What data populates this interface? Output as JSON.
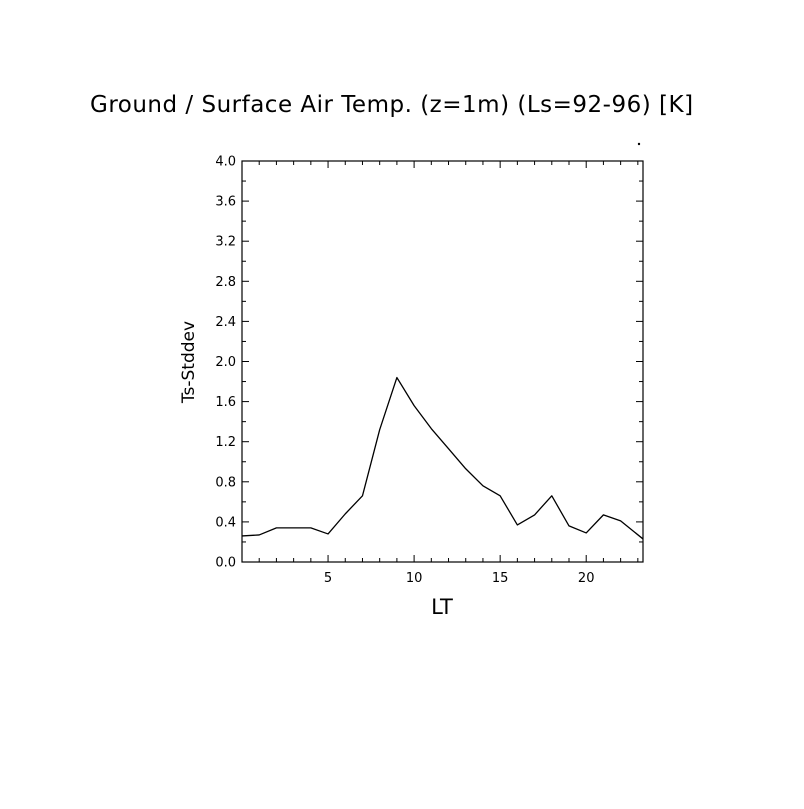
{
  "chart_data": {
    "type": "line",
    "title": "Ground / Surface Air Temp. (z=1m) (Ls=92-96) [K]",
    "xlabel": "LT",
    "ylabel": "Ts-Stddev",
    "xlim": [
      0,
      23.3
    ],
    "ylim": [
      0.0,
      4.0
    ],
    "xticks": [
      5,
      10,
      15,
      20
    ],
    "xtick_labels": [
      "5",
      "10",
      "15",
      "20"
    ],
    "yticks": [
      0.0,
      0.4,
      0.8,
      1.2,
      1.6,
      2.0,
      2.4,
      2.8,
      3.2,
      3.6,
      4.0
    ],
    "ytick_labels": [
      "0.0",
      "0.4",
      "0.8",
      "1.2",
      "1.6",
      "2.0",
      "2.4",
      "2.8",
      "3.2",
      "3.6",
      "4.0"
    ],
    "grid": false,
    "series": [
      {
        "x": [
          0,
          1,
          2,
          3,
          4,
          5,
          6,
          7,
          8,
          9,
          10,
          11,
          12,
          13,
          14,
          15,
          16,
          17,
          18,
          19,
          20,
          21,
          22,
          23.3
        ],
        "values": [
          0.26,
          0.27,
          0.34,
          0.34,
          0.34,
          0.28,
          0.48,
          0.66,
          1.32,
          1.84,
          1.56,
          1.33,
          1.13,
          0.93,
          0.76,
          0.66,
          0.37,
          0.47,
          0.66,
          0.36,
          0.29,
          0.47,
          0.41,
          0.23
        ]
      }
    ]
  }
}
